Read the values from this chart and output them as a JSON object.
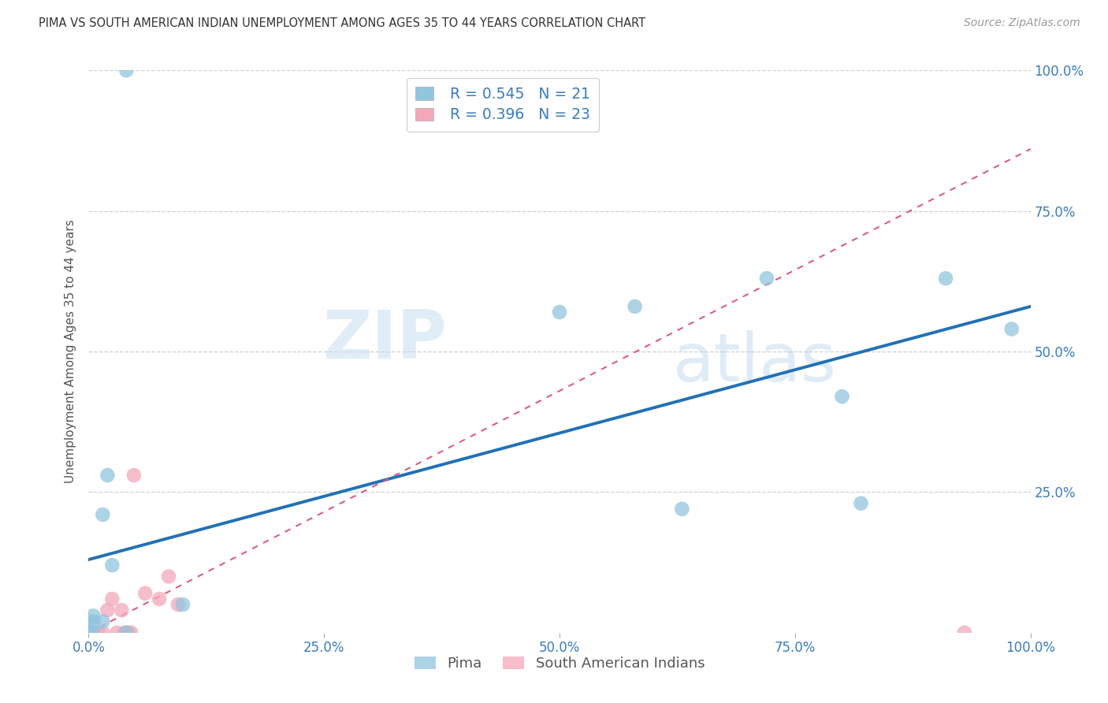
{
  "title": "PIMA VS SOUTH AMERICAN INDIAN UNEMPLOYMENT AMONG AGES 35 TO 44 YEARS CORRELATION CHART",
  "source": "Source: ZipAtlas.com",
  "ylabel": "Unemployment Among Ages 35 to 44 years",
  "xlim": [
    0,
    1.0
  ],
  "ylim": [
    0,
    1.0
  ],
  "xtick_labels": [
    "0.0%",
    "25.0%",
    "50.0%",
    "75.0%",
    "100.0%"
  ],
  "xtick_values": [
    0,
    0.25,
    0.5,
    0.75,
    1.0
  ],
  "ytick_labels": [
    "100.0%",
    "75.0%",
    "50.0%",
    "25.0%"
  ],
  "ytick_values": [
    1.0,
    0.75,
    0.5,
    0.25
  ],
  "pima_color": "#92c5de",
  "sa_color": "#f4a7b9",
  "legend_r_pima": "R = 0.545",
  "legend_n_pima": "N = 21",
  "legend_r_sa": "R = 0.396",
  "legend_n_sa": "N = 23",
  "pima_x": [
    0.02,
    0.04,
    0.015,
    0.005,
    0.0,
    0.005,
    0.025,
    0.04,
    0.1,
    0.0,
    0.0,
    0.005,
    0.015,
    0.5,
    0.72,
    0.63,
    0.82,
    0.91,
    0.8,
    0.58,
    0.98
  ],
  "pima_y": [
    0.28,
    1.0,
    0.21,
    0.02,
    0.02,
    0.03,
    0.12,
    0.0,
    0.05,
    0.0,
    0.0,
    0.0,
    0.02,
    0.57,
    0.63,
    0.22,
    0.23,
    0.63,
    0.42,
    0.58,
    0.54
  ],
  "sa_x": [
    0.0,
    0.0,
    0.0,
    0.0,
    0.0,
    0.0,
    0.005,
    0.007,
    0.01,
    0.015,
    0.02,
    0.025,
    0.03,
    0.035,
    0.038,
    0.042,
    0.045,
    0.048,
    0.06,
    0.075,
    0.085,
    0.095,
    0.93
  ],
  "sa_y": [
    0.0,
    0.0,
    0.0,
    0.0,
    0.0,
    0.0,
    0.0,
    0.0,
    0.0,
    0.0,
    0.04,
    0.06,
    0.0,
    0.04,
    0.0,
    0.0,
    0.0,
    0.28,
    0.07,
    0.06,
    0.1,
    0.05,
    0.0
  ],
  "blue_line_x0": 0.0,
  "blue_line_y0": 0.13,
  "blue_line_x1": 1.0,
  "blue_line_y1": 0.58,
  "pink_line_x0": 0.0,
  "pink_line_y0": 0.0,
  "pink_line_x1": 1.0,
  "pink_line_y1": 0.86,
  "watermark_line1": "ZIP",
  "watermark_line2": "atlas",
  "background_color": "#ffffff",
  "grid_color": "#d0d0d0",
  "marker_size": 180,
  "title_fontsize": 10.5,
  "source_fontsize": 10,
  "tick_fontsize": 12,
  "ylabel_fontsize": 11
}
